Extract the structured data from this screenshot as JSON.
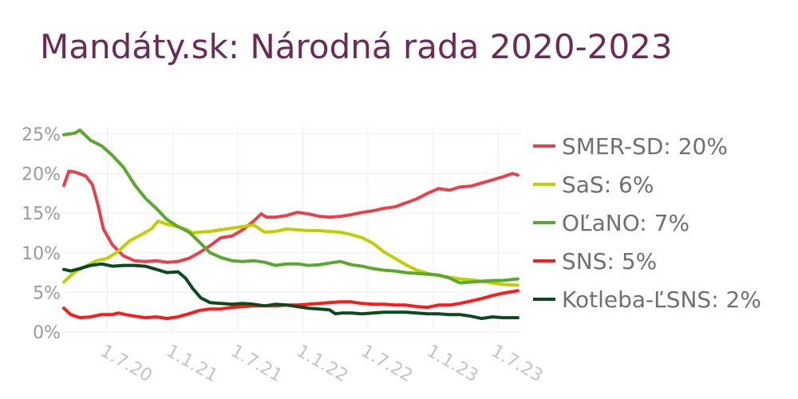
{
  "title": "Mandáty.sk: Národná rada 2020-2023",
  "chart_data": {
    "type": "line",
    "title": "Mandáty.sk: Národná rada 2020-2023",
    "xlabel": "",
    "ylabel": "",
    "xlim": [
      "2020-03-01",
      "2023-09-01"
    ],
    "ylim": [
      0,
      26
    ],
    "grid": true,
    "legend_position": "right",
    "y_ticks": [
      {
        "value": 0,
        "label": "0%"
      },
      {
        "value": 5,
        "label": "5%"
      },
      {
        "value": 10,
        "label": "10%"
      },
      {
        "value": 15,
        "label": "15%"
      },
      {
        "value": 20,
        "label": "20%"
      },
      {
        "value": 25,
        "label": "25%"
      }
    ],
    "x_ticks": [
      {
        "value": "2020-07-01",
        "label": "1.7.20"
      },
      {
        "value": "2021-01-01",
        "label": "1.1.21"
      },
      {
        "value": "2021-07-01",
        "label": "1.7.21"
      },
      {
        "value": "2022-01-01",
        "label": "1.1.22"
      },
      {
        "value": "2022-07-01",
        "label": "1.7.22"
      },
      {
        "value": "2023-01-01",
        "label": "1.1.23"
      },
      {
        "value": "2023-07-01",
        "label": "1.7.23"
      }
    ],
    "series": [
      {
        "name": "SMER-SD",
        "legend_label": "SMER-SD: 20%",
        "color": "#e8414b",
        "points": [
          [
            "2020-03-01",
            18.5
          ],
          [
            "2020-03-15",
            20.3
          ],
          [
            "2020-04-01",
            20.2
          ],
          [
            "2020-05-01",
            19.7
          ],
          [
            "2020-05-20",
            18.6
          ],
          [
            "2020-06-05",
            16.0
          ],
          [
            "2020-06-20",
            13.0
          ],
          [
            "2020-07-15",
            11.0
          ],
          [
            "2020-08-15",
            9.6
          ],
          [
            "2020-09-15",
            9.0
          ],
          [
            "2020-10-15",
            8.9
          ],
          [
            "2020-11-15",
            9.0
          ],
          [
            "2020-12-15",
            8.8
          ],
          [
            "2021-01-15",
            8.9
          ],
          [
            "2021-02-15",
            9.3
          ],
          [
            "2021-03-15",
            10.0
          ],
          [
            "2021-04-15",
            10.9
          ],
          [
            "2021-05-15",
            11.9
          ],
          [
            "2021-06-15",
            12.1
          ],
          [
            "2021-07-15",
            12.9
          ],
          [
            "2021-08-15",
            14.0
          ],
          [
            "2021-09-05",
            14.9
          ],
          [
            "2021-09-20",
            14.5
          ],
          [
            "2021-10-15",
            14.5
          ],
          [
            "2021-11-15",
            14.7
          ],
          [
            "2021-12-15",
            15.1
          ],
          [
            "2022-01-15",
            14.9
          ],
          [
            "2022-02-15",
            14.6
          ],
          [
            "2022-03-15",
            14.5
          ],
          [
            "2022-04-15",
            14.6
          ],
          [
            "2022-05-15",
            14.8
          ],
          [
            "2022-06-15",
            15.1
          ],
          [
            "2022-07-15",
            15.3
          ],
          [
            "2022-08-15",
            15.6
          ],
          [
            "2022-09-15",
            15.8
          ],
          [
            "2022-10-15",
            16.3
          ],
          [
            "2022-11-15",
            16.8
          ],
          [
            "2022-12-15",
            17.5
          ],
          [
            "2023-01-15",
            18.1
          ],
          [
            "2023-02-15",
            17.9
          ],
          [
            "2023-03-15",
            18.3
          ],
          [
            "2023-04-15",
            18.4
          ],
          [
            "2023-05-15",
            18.8
          ],
          [
            "2023-06-15",
            19.2
          ],
          [
            "2023-07-15",
            19.6
          ],
          [
            "2023-08-10",
            20.0
          ],
          [
            "2023-08-25",
            19.8
          ]
        ]
      },
      {
        "name": "SaS",
        "legend_label": "SaS: 6%",
        "color": "#bfd000",
        "points": [
          [
            "2020-03-01",
            6.3
          ],
          [
            "2020-04-01",
            7.6
          ],
          [
            "2020-05-01",
            8.3
          ],
          [
            "2020-06-01",
            9.0
          ],
          [
            "2020-07-01",
            9.3
          ],
          [
            "2020-08-01",
            10.2
          ],
          [
            "2020-09-01",
            11.5
          ],
          [
            "2020-10-01",
            12.2
          ],
          [
            "2020-11-01",
            13.0
          ],
          [
            "2020-11-20",
            14.0
          ],
          [
            "2020-12-15",
            13.6
          ],
          [
            "2021-01-15",
            13.3
          ],
          [
            "2021-02-10",
            12.9
          ],
          [
            "2021-02-25",
            12.5
          ],
          [
            "2021-03-15",
            12.6
          ],
          [
            "2021-04-15",
            12.7
          ],
          [
            "2021-05-15",
            12.9
          ],
          [
            "2021-06-15",
            13.1
          ],
          [
            "2021-07-15",
            13.3
          ],
          [
            "2021-08-15",
            13.5
          ],
          [
            "2021-09-15",
            12.6
          ],
          [
            "2021-10-15",
            12.7
          ],
          [
            "2021-11-15",
            13.0
          ],
          [
            "2021-12-15",
            12.9
          ],
          [
            "2022-01-15",
            12.8
          ],
          [
            "2022-02-15",
            12.8
          ],
          [
            "2022-03-15",
            12.7
          ],
          [
            "2022-04-15",
            12.6
          ],
          [
            "2022-05-15",
            12.3
          ],
          [
            "2022-06-15",
            11.9
          ],
          [
            "2022-07-15",
            11.2
          ],
          [
            "2022-08-15",
            10.1
          ],
          [
            "2022-09-15",
            9.3
          ],
          [
            "2022-10-15",
            8.5
          ],
          [
            "2022-11-15",
            7.8
          ],
          [
            "2022-12-15",
            7.4
          ],
          [
            "2023-01-15",
            7.1
          ],
          [
            "2023-02-15",
            6.9
          ],
          [
            "2023-03-15",
            6.7
          ],
          [
            "2023-04-15",
            6.6
          ],
          [
            "2023-05-15",
            6.4
          ],
          [
            "2023-06-15",
            6.2
          ],
          [
            "2023-07-15",
            6.0
          ],
          [
            "2023-08-25",
            5.9
          ]
        ]
      },
      {
        "name": "OĽaNO",
        "legend_label": "OĽaNO: 7%",
        "color": "#5ba82e",
        "points": [
          [
            "2020-03-01",
            24.9
          ],
          [
            "2020-04-01",
            25.1
          ],
          [
            "2020-04-15",
            25.5
          ],
          [
            "2020-05-15",
            24.2
          ],
          [
            "2020-06-15",
            23.5
          ],
          [
            "2020-07-15",
            22.3
          ],
          [
            "2020-08-15",
            20.8
          ],
          [
            "2020-09-15",
            18.6
          ],
          [
            "2020-10-15",
            16.9
          ],
          [
            "2020-11-15",
            15.6
          ],
          [
            "2020-12-15",
            14.2
          ],
          [
            "2021-01-15",
            13.3
          ],
          [
            "2021-02-15",
            12.6
          ],
          [
            "2021-03-15",
            11.4
          ],
          [
            "2021-04-15",
            10.0
          ],
          [
            "2021-05-15",
            9.4
          ],
          [
            "2021-06-15",
            9.0
          ],
          [
            "2021-07-15",
            8.9
          ],
          [
            "2021-08-15",
            9.0
          ],
          [
            "2021-09-15",
            8.8
          ],
          [
            "2021-10-15",
            8.4
          ],
          [
            "2021-11-15",
            8.6
          ],
          [
            "2021-12-15",
            8.6
          ],
          [
            "2022-01-15",
            8.4
          ],
          [
            "2022-02-15",
            8.5
          ],
          [
            "2022-03-15",
            8.7
          ],
          [
            "2022-04-15",
            8.9
          ],
          [
            "2022-05-15",
            8.5
          ],
          [
            "2022-06-15",
            8.3
          ],
          [
            "2022-07-15",
            8.0
          ],
          [
            "2022-08-15",
            7.8
          ],
          [
            "2022-09-15",
            7.7
          ],
          [
            "2022-10-15",
            7.5
          ],
          [
            "2022-11-15",
            7.4
          ],
          [
            "2022-12-15",
            7.3
          ],
          [
            "2023-01-15",
            7.2
          ],
          [
            "2023-02-15",
            6.8
          ],
          [
            "2023-03-15",
            6.2
          ],
          [
            "2023-04-15",
            6.3
          ],
          [
            "2023-05-15",
            6.4
          ],
          [
            "2023-06-15",
            6.5
          ],
          [
            "2023-07-15",
            6.5
          ],
          [
            "2023-08-25",
            6.7
          ]
        ]
      },
      {
        "name": "SNS",
        "legend_label": "SNS: 5%",
        "color": "#ff1a1a",
        "points": [
          [
            "2020-03-01",
            3.0
          ],
          [
            "2020-03-20",
            2.2
          ],
          [
            "2020-04-15",
            1.8
          ],
          [
            "2020-05-15",
            1.9
          ],
          [
            "2020-06-15",
            2.2
          ],
          [
            "2020-07-15",
            2.2
          ],
          [
            "2020-08-01",
            2.4
          ],
          [
            "2020-08-20",
            2.2
          ],
          [
            "2020-09-15",
            2.0
          ],
          [
            "2020-10-15",
            1.8
          ],
          [
            "2020-11-15",
            1.9
          ],
          [
            "2020-12-15",
            1.7
          ],
          [
            "2021-01-15",
            1.9
          ],
          [
            "2021-02-15",
            2.3
          ],
          [
            "2021-03-15",
            2.7
          ],
          [
            "2021-04-15",
            2.9
          ],
          [
            "2021-05-15",
            2.9
          ],
          [
            "2021-06-15",
            3.1
          ],
          [
            "2021-07-15",
            3.2
          ],
          [
            "2021-08-15",
            3.3
          ],
          [
            "2021-09-15",
            3.3
          ],
          [
            "2021-10-15",
            3.3
          ],
          [
            "2021-11-15",
            3.4
          ],
          [
            "2021-12-15",
            3.4
          ],
          [
            "2022-01-15",
            3.5
          ],
          [
            "2022-02-15",
            3.6
          ],
          [
            "2022-03-15",
            3.7
          ],
          [
            "2022-04-15",
            3.8
          ],
          [
            "2022-05-15",
            3.8
          ],
          [
            "2022-06-15",
            3.6
          ],
          [
            "2022-07-15",
            3.5
          ],
          [
            "2022-08-15",
            3.5
          ],
          [
            "2022-09-15",
            3.4
          ],
          [
            "2022-10-15",
            3.4
          ],
          [
            "2022-11-15",
            3.2
          ],
          [
            "2022-12-15",
            3.1
          ],
          [
            "2023-01-15",
            3.4
          ],
          [
            "2023-02-15",
            3.4
          ],
          [
            "2023-03-15",
            3.6
          ],
          [
            "2023-04-15",
            3.9
          ],
          [
            "2023-05-15",
            4.2
          ],
          [
            "2023-06-15",
            4.6
          ],
          [
            "2023-07-15",
            4.9
          ],
          [
            "2023-08-25",
            5.2
          ]
        ]
      },
      {
        "name": "Kotleba-ĽSNS",
        "legend_label": "Kotleba-ĽSNS: 2%",
        "color": "#0b4a1f",
        "points": [
          [
            "2020-03-01",
            7.9
          ],
          [
            "2020-03-20",
            7.7
          ],
          [
            "2020-04-15",
            8.0
          ],
          [
            "2020-05-15",
            8.4
          ],
          [
            "2020-06-15",
            8.6
          ],
          [
            "2020-07-15",
            8.3
          ],
          [
            "2020-08-15",
            8.4
          ],
          [
            "2020-09-15",
            8.4
          ],
          [
            "2020-10-15",
            8.3
          ],
          [
            "2020-11-15",
            7.9
          ],
          [
            "2020-12-15",
            7.5
          ],
          [
            "2021-01-15",
            7.6
          ],
          [
            "2021-02-05",
            6.8
          ],
          [
            "2021-02-25",
            5.5
          ],
          [
            "2021-03-20",
            4.3
          ],
          [
            "2021-04-15",
            3.7
          ],
          [
            "2021-05-15",
            3.6
          ],
          [
            "2021-06-15",
            3.5
          ],
          [
            "2021-07-15",
            3.6
          ],
          [
            "2021-08-15",
            3.5
          ],
          [
            "2021-09-15",
            3.3
          ],
          [
            "2021-10-15",
            3.5
          ],
          [
            "2021-11-15",
            3.4
          ],
          [
            "2021-12-15",
            3.2
          ],
          [
            "2022-01-15",
            3.0
          ],
          [
            "2022-02-15",
            2.9
          ],
          [
            "2022-03-15",
            2.8
          ],
          [
            "2022-04-01",
            2.3
          ],
          [
            "2022-04-20",
            2.4
          ],
          [
            "2022-05-15",
            2.4
          ],
          [
            "2022-06-15",
            2.3
          ],
          [
            "2022-07-15",
            2.4
          ],
          [
            "2022-08-15",
            2.5
          ],
          [
            "2022-09-15",
            2.5
          ],
          [
            "2022-10-15",
            2.5
          ],
          [
            "2022-11-15",
            2.4
          ],
          [
            "2022-12-15",
            2.3
          ],
          [
            "2023-01-15",
            2.3
          ],
          [
            "2023-02-15",
            2.2
          ],
          [
            "2023-03-15",
            2.2
          ],
          [
            "2023-04-15",
            2.0
          ],
          [
            "2023-05-15",
            1.7
          ],
          [
            "2023-06-15",
            1.9
          ],
          [
            "2023-07-15",
            1.8
          ],
          [
            "2023-08-25",
            1.8
          ]
        ]
      }
    ]
  }
}
